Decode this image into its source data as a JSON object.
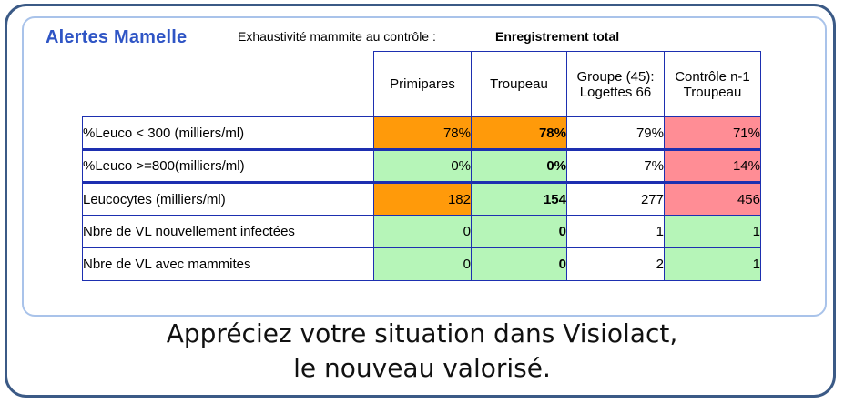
{
  "panel": {
    "title": "Alertes Mamelle",
    "exhaustivite_label": "Exhaustivité mammite au contrôle :",
    "exhaustivite_value": "Enregistrement total"
  },
  "table": {
    "columns": [
      "Primipares",
      "Troupeau",
      "Groupe (45):\nLogettes 66",
      "Contrôle n-1\nTroupeau"
    ],
    "rows": [
      {
        "label": "%Leuco < 300 (milliers/ml)",
        "cells": [
          "78%",
          "78%",
          "79%",
          "71%"
        ],
        "colors": [
          "#ff9a0a",
          "#ff9a0a",
          "#ffffff",
          "#ff8d95"
        ]
      },
      {
        "label": "%Leuco >=800(milliers/ml)",
        "cells": [
          "0%",
          "0%",
          "7%",
          "14%"
        ],
        "colors": [
          "#b6f5b8",
          "#b6f5b8",
          "#ffffff",
          "#ff8d95"
        ]
      },
      {
        "label": "Leucocytes (milliers/ml)",
        "cells": [
          "182",
          "154",
          "277",
          "456"
        ],
        "colors": [
          "#ff9a0a",
          "#b6f5b8",
          "#ffffff",
          "#ff8d95"
        ]
      },
      {
        "label": "Nbre de VL nouvellement infectées",
        "cells": [
          "0",
          "0",
          "1",
          "1"
        ],
        "colors": [
          "#b6f5b8",
          "#b6f5b8",
          "#ffffff",
          "#b6f5b8"
        ]
      },
      {
        "label": "Nbre de VL avec mammites",
        "cells": [
          "0",
          "0",
          "2",
          "1"
        ],
        "colors": [
          "#b6f5b8",
          "#b6f5b8",
          "#ffffff",
          "#b6f5b8"
        ]
      }
    ]
  },
  "footer": {
    "line1": "Appréciez votre situation dans Visiolact,",
    "line2": "le nouveau valorisé."
  }
}
